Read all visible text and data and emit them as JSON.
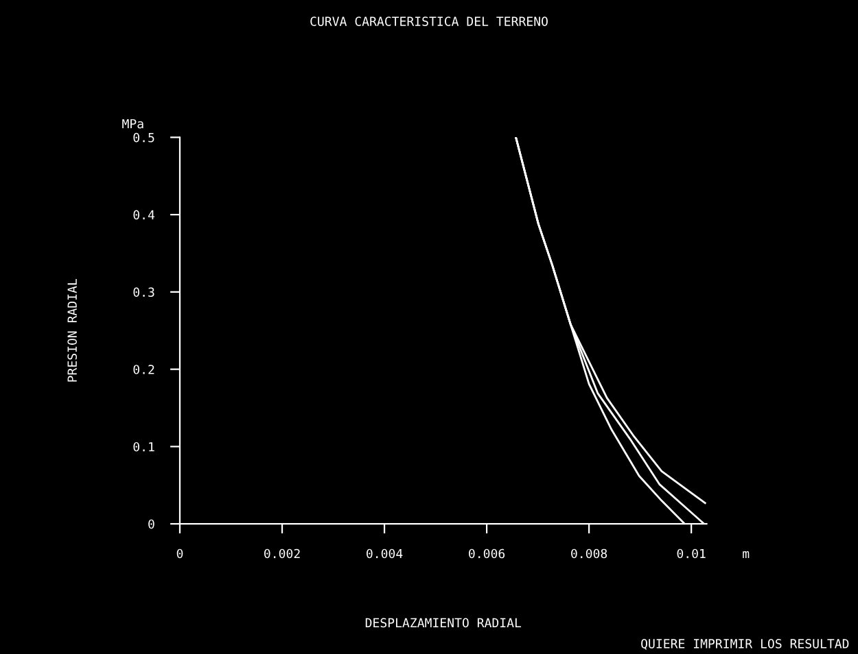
{
  "chart_data": {
    "type": "line",
    "title": "CURVA CARACTERISTICA DEL TERRENO",
    "xlabel": "DESPLAZAMIENTO RADIAL",
    "ylabel": "PRESION RADIAL",
    "annotations": [
      "MPa",
      "m",
      "QUIERE IMPRIMIR LOS RESULTAD"
    ],
    "series": [
      {
        "color": "#ffffff",
        "x": [
          0.00657,
          0.00701,
          0.00728,
          0.00764,
          0.00835,
          0.00888,
          0.00942,
          0.01027
        ],
        "values": [
          0.5,
          0.388,
          0.335,
          0.258,
          0.163,
          0.113,
          0.068,
          0.027
        ]
      },
      {
        "color": "#ffffff",
        "x": [
          0.00657,
          0.00701,
          0.00728,
          0.00764,
          0.00817,
          0.0088,
          0.00938,
          0.01025
        ],
        "values": [
          0.5,
          0.388,
          0.335,
          0.258,
          0.169,
          0.11,
          0.051,
          0.0
        ]
      },
      {
        "color": "#ffffff",
        "x": [
          0.00657,
          0.00701,
          0.00728,
          0.00764,
          0.008,
          0.00844,
          0.00898,
          0.00942,
          0.00987
        ],
        "values": [
          0.5,
          0.388,
          0.335,
          0.258,
          0.181,
          0.122,
          0.062,
          0.03,
          0.0
        ]
      }
    ],
    "xlim": [
      0,
      0.0103
    ],
    "ylim": [
      0,
      0.5
    ],
    "xticks": [
      0,
      0.002,
      0.004,
      0.006,
      0.008,
      0.01
    ],
    "yticks": [
      0,
      0.1,
      0.2,
      0.3,
      0.4,
      0.5
    ],
    "grid": false,
    "legend": false,
    "marker": "none",
    "line_style": "solid"
  }
}
